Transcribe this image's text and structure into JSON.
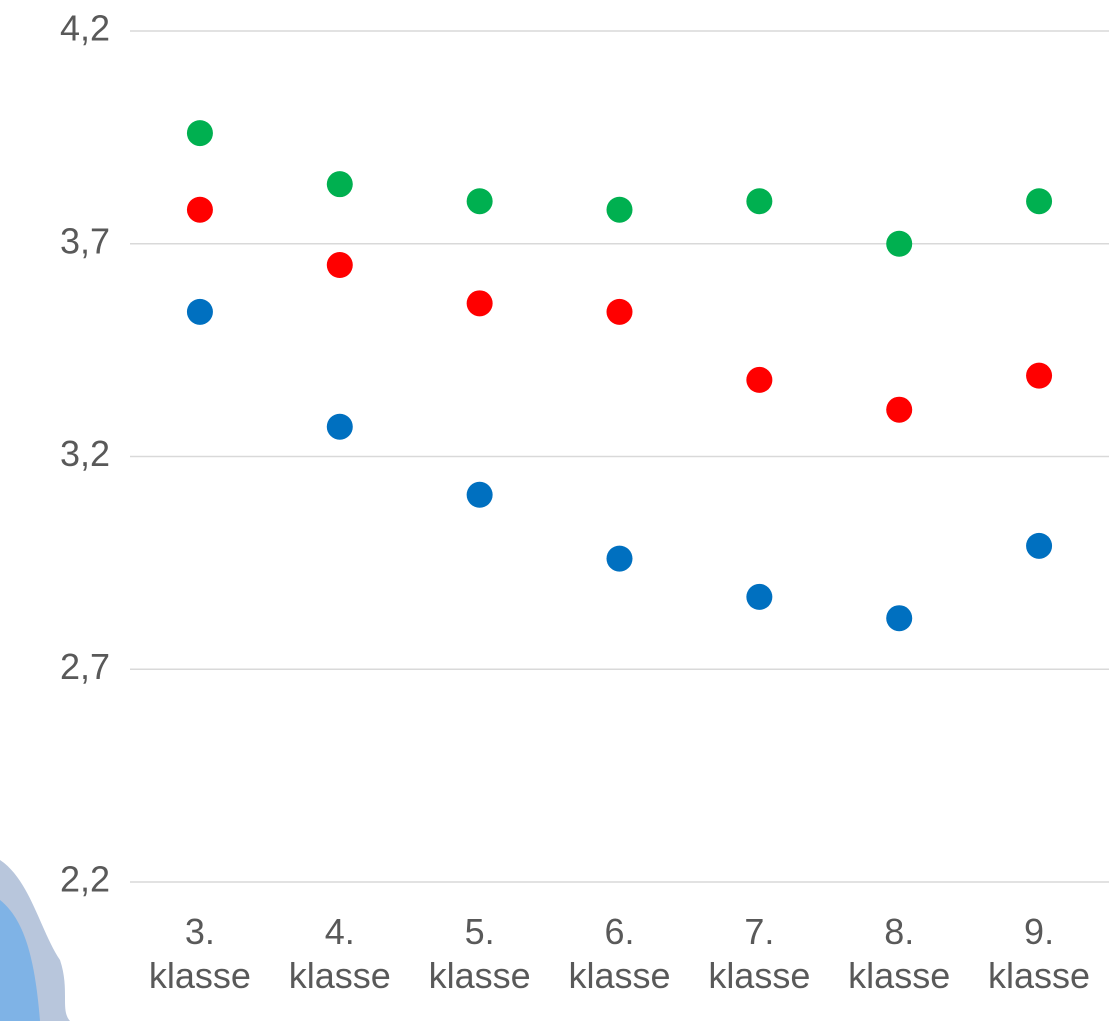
{
  "chart_data": {
    "type": "scatter",
    "categories": [
      "3. klasse",
      "4. klasse",
      "5. klasse",
      "6. klasse",
      "7. klasse",
      "8. klasse",
      "9. klasse"
    ],
    "series": [
      {
        "color": "#00b050",
        "values": [
          3.96,
          3.84,
          3.8,
          3.78,
          3.8,
          3.7,
          3.8
        ]
      },
      {
        "color": "#ff0000",
        "values": [
          3.78,
          3.65,
          3.56,
          3.54,
          3.38,
          3.31,
          3.39
        ]
      },
      {
        "color": "#0070c0",
        "values": [
          3.54,
          3.27,
          3.11,
          2.96,
          2.87,
          2.82,
          2.99
        ]
      }
    ],
    "ylim": [
      2.2,
      4.2
    ],
    "yticks": [
      {
        "value": 2.2,
        "label": "2,2"
      },
      {
        "value": 2.7,
        "label": "2,7"
      },
      {
        "value": 3.2,
        "label": "3,2"
      },
      {
        "value": 3.7,
        "label": "3,7"
      },
      {
        "value": 4.2,
        "label": "4,2"
      }
    ],
    "grid": true
  }
}
